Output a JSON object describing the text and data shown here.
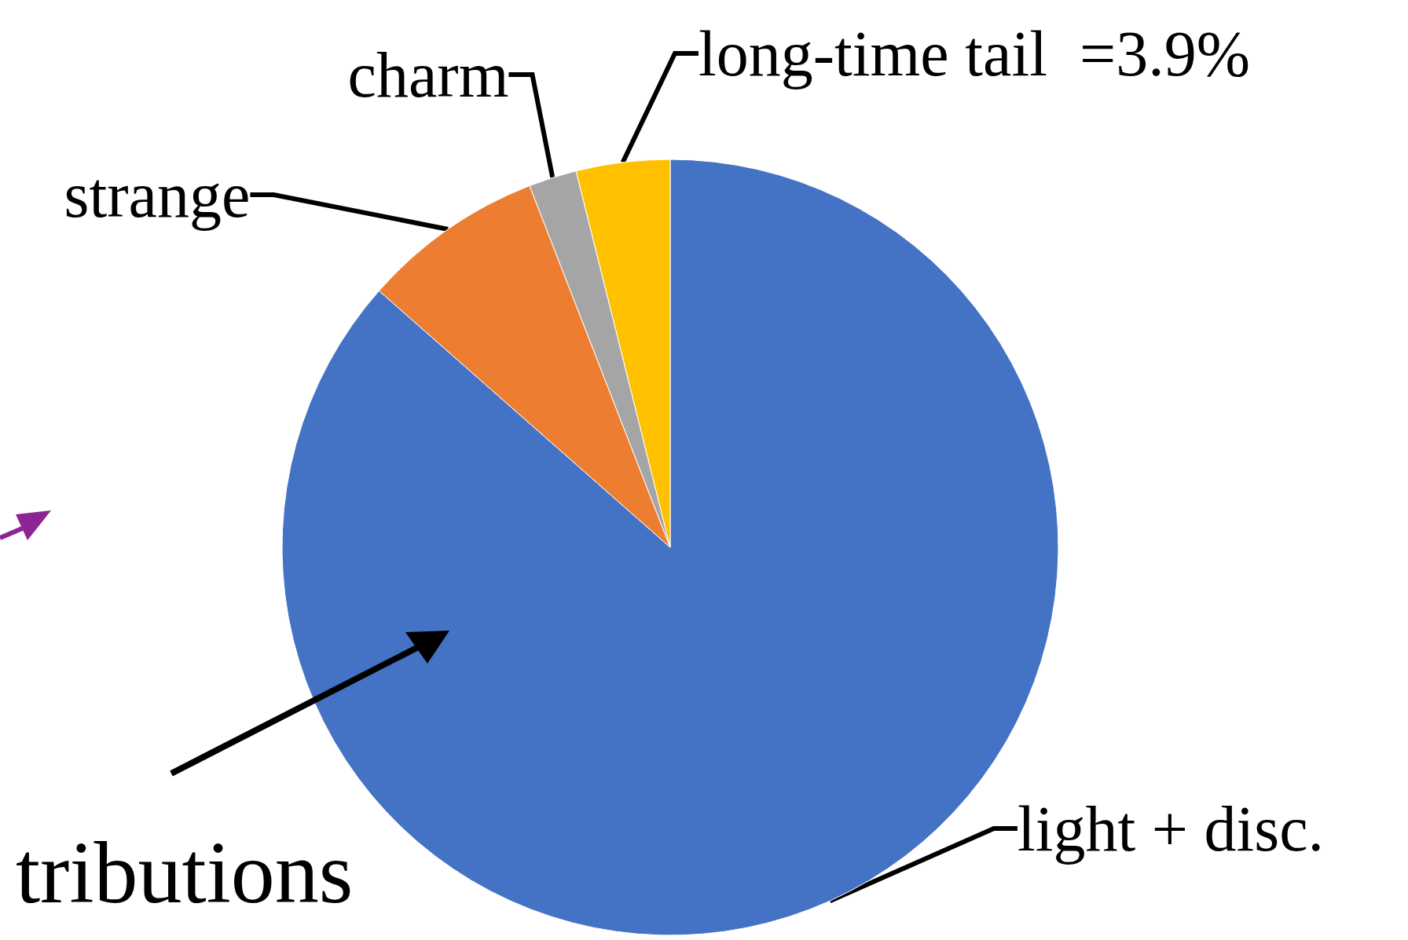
{
  "chart_data": {
    "type": "pie",
    "categories": [
      "light + disc.",
      "strange",
      "charm",
      "long-time tail"
    ],
    "values": [
      86.5,
      7.6,
      2.0,
      3.9
    ],
    "colors": [
      "#4472c4",
      "#ed7d31",
      "#a5a5a5",
      "#ffc000"
    ],
    "value_labels": [
      null,
      null,
      null,
      "=3.9%"
    ],
    "annotations": [
      "tributions"
    ],
    "legend": false
  }
}
